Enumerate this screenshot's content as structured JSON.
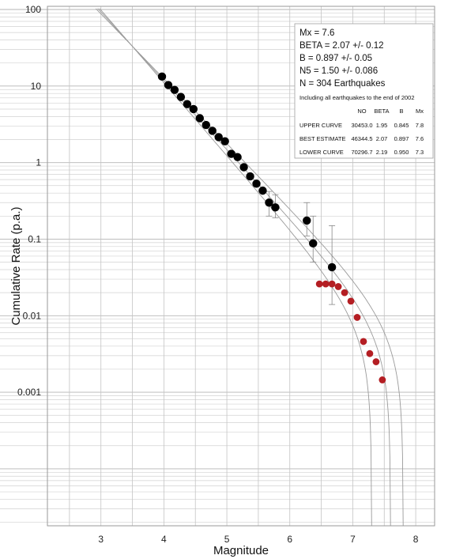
{
  "chart_data": {
    "type": "scatter",
    "xlabel": "Magnitude",
    "ylabel": "Cumulative Rate (p.a.)",
    "xlim": [
      2.15,
      8.3
    ],
    "ylim": [
      1.8e-05,
      110
    ],
    "yscale": "log",
    "x_ticks": [
      3,
      4,
      5,
      6,
      7,
      8
    ],
    "x_tick_labels": [
      "3",
      "4",
      "5",
      "6",
      "7",
      "8"
    ],
    "y_ticks": [
      100,
      10,
      1,
      0.1,
      0.01,
      0.001
    ],
    "y_tick_labels": [
      "100",
      "10",
      "1",
      "0.1",
      "0.01",
      "0.001"
    ],
    "grid": true,
    "series": [
      {
        "color": "#000000",
        "x": [
          3.97,
          4.07,
          4.17,
          4.27,
          4.37,
          4.47,
          4.57,
          4.67,
          4.77,
          4.87,
          4.97,
          5.07,
          5.17,
          5.27,
          5.37,
          5.47,
          5.57,
          5.67,
          5.77,
          6.27,
          6.37,
          6.67
        ],
        "y": [
          13.3,
          10.3,
          8.9,
          7.2,
          5.8,
          5.0,
          3.8,
          3.1,
          2.6,
          2.15,
          1.9,
          1.3,
          1.18,
          0.87,
          0.66,
          0.53,
          0.43,
          0.3,
          0.26,
          0.175,
          0.088,
          0.043
        ]
      },
      {
        "color": "#b41e23",
        "x": [
          6.47,
          6.57,
          6.67,
          6.77,
          6.87,
          6.97,
          7.07,
          7.17,
          7.27,
          7.37,
          7.47
        ],
        "y": [
          0.026,
          0.026,
          0.026,
          0.024,
          0.02,
          0.0155,
          0.0095,
          0.0046,
          0.0032,
          0.0025,
          0.00145
        ]
      }
    ],
    "error_bars": [
      {
        "x": 5.67,
        "low": 0.2,
        "high": 0.42
      },
      {
        "x": 5.77,
        "low": 0.19,
        "high": 0.38
      },
      {
        "x": 6.27,
        "low": 0.11,
        "high": 0.3
      },
      {
        "x": 6.37,
        "low": 0.05,
        "high": 0.2
      },
      {
        "x": 6.67,
        "low": 0.014,
        "high": 0.15
      }
    ],
    "curves": [
      {
        "name": "UPPER CURVE",
        "N0": 30453.0,
        "beta": 1.95,
        "b": 0.845,
        "mx": 7.8
      },
      {
        "name": "BEST ESTIMATE",
        "N0": 46344.5,
        "beta": 2.07,
        "b": 0.897,
        "mx": 7.6
      },
      {
        "name": "LOWER CURVE",
        "N0": 70296.7,
        "beta": 2.19,
        "b": 0.95,
        "mx": 7.3
      }
    ],
    "annotation": {
      "lines": [
        "Mx = 7.6",
        "BETA = 2.07  +/- 0.12",
        "B = 0.897  +/- 0.05",
        "N5 =     1.50 +/- 0.086",
        "N = 304 Earthquakes"
      ],
      "note": "Including all earthquakes to the end of 2002",
      "table_header": [
        "NO",
        "BETA",
        "B",
        "Mx"
      ],
      "table_rows": [
        [
          "UPPER CURVE",
          "30453.0",
          "1.95",
          "0.845",
          "7.8"
        ],
        [
          "BEST ESTIMATE",
          "46344.5",
          "2.07",
          "0.897",
          "7.6"
        ],
        [
          "LOWER CURVE",
          "70296.7",
          "2.19",
          "0.950",
          "7.3"
        ]
      ]
    }
  }
}
